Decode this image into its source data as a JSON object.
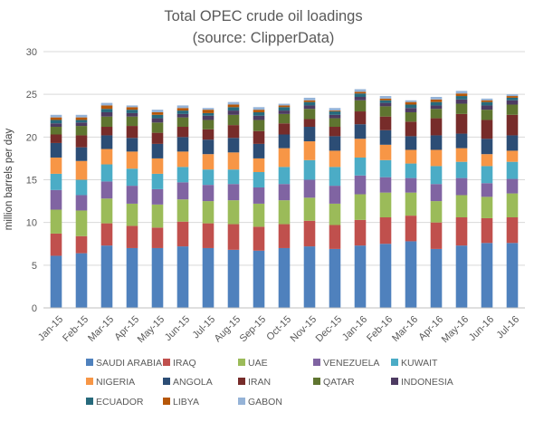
{
  "chart_data": {
    "type": "bar",
    "stacked": true,
    "title": "Total OPEC crude oil loadings",
    "subtitle": "(source: ClipperData)",
    "xlabel": "",
    "ylabel": "million barrels per day",
    "ylim": [
      0,
      30
    ],
    "yticks": [
      0,
      5,
      10,
      15,
      20,
      25,
      30
    ],
    "grid": true,
    "legend_position": "bottom",
    "categories": [
      "Jan-15",
      "Feb-15",
      "Mar-15",
      "Apr-15",
      "May-15",
      "Jun-15",
      "Jul-15",
      "Aug-15",
      "Sep-15",
      "Oct-15",
      "Nov-15",
      "Dec-15",
      "Jan-16",
      "Feb-16",
      "Mar-16",
      "Apr-16",
      "May-16",
      "Jun-16",
      "Jul-16"
    ],
    "series": [
      {
        "name": "SAUDI ARABIA",
        "color": "#4f81bd",
        "values": [
          6.1,
          6.4,
          7.3,
          7.0,
          7.0,
          7.2,
          7.0,
          6.8,
          6.7,
          7.0,
          7.2,
          6.9,
          7.3,
          7.5,
          7.8,
          6.9,
          7.3,
          7.6,
          7.6
        ]
      },
      {
        "name": "IRAQ",
        "color": "#c0504d",
        "values": [
          2.6,
          2.0,
          2.6,
          2.6,
          2.4,
          2.9,
          2.9,
          3.0,
          2.8,
          2.8,
          3.0,
          2.8,
          3.0,
          3.1,
          3.0,
          3.1,
          3.3,
          2.9,
          3.0
        ]
      },
      {
        "name": "UAE",
        "color": "#9bbb59",
        "values": [
          2.8,
          3.0,
          2.9,
          2.6,
          2.7,
          2.6,
          2.6,
          2.8,
          2.7,
          2.8,
          2.7,
          2.5,
          3.0,
          2.9,
          2.7,
          2.5,
          2.6,
          2.5,
          2.8
        ]
      },
      {
        "name": "VENEZUELA",
        "color": "#8064a2",
        "values": [
          2.3,
          1.8,
          2.0,
          2.1,
          1.8,
          2.0,
          1.9,
          1.9,
          1.9,
          1.9,
          2.1,
          2.1,
          2.2,
          1.8,
          1.7,
          2.0,
          2.0,
          1.6,
          1.7
        ]
      },
      {
        "name": "KUWAIT",
        "color": "#4bacc6",
        "values": [
          1.9,
          1.8,
          2.0,
          2.0,
          1.8,
          1.8,
          1.8,
          1.7,
          1.8,
          2.0,
          2.3,
          2.2,
          2.1,
          2.0,
          1.7,
          2.1,
          1.9,
          2.0,
          2.0
        ]
      },
      {
        "name": "NIGERIA",
        "color": "#f79646",
        "values": [
          1.9,
          2.2,
          1.8,
          2.0,
          1.8,
          1.8,
          1.8,
          2.0,
          1.6,
          2.2,
          2.2,
          1.9,
          2.2,
          1.8,
          1.6,
          1.9,
          1.6,
          1.4,
          1.3
        ]
      },
      {
        "name": "ANGOLA",
        "color": "#2c4d75",
        "values": [
          1.7,
          1.6,
          1.6,
          1.6,
          1.7,
          1.7,
          1.7,
          1.7,
          1.7,
          1.6,
          1.7,
          1.7,
          1.7,
          1.7,
          1.6,
          1.7,
          1.7,
          1.8,
          1.8
        ]
      },
      {
        "name": "IRAN",
        "color": "#772c2a",
        "values": [
          1.0,
          1.4,
          1.0,
          1.4,
          1.3,
          1.2,
          1.2,
          1.5,
          1.5,
          1.3,
          0.9,
          1.1,
          1.5,
          1.6,
          1.7,
          2.0,
          2.3,
          2.2,
          2.4
        ]
      },
      {
        "name": "QATAR",
        "color": "#5f7530",
        "values": [
          0.9,
          1.1,
          1.2,
          1.1,
          1.2,
          1.1,
          1.1,
          1.2,
          1.3,
          1.1,
          1.2,
          1.0,
          1.3,
          1.2,
          1.1,
          1.1,
          1.2,
          1.2,
          1.2
        ]
      },
      {
        "name": "INDONESIA",
        "color": "#4d3b62",
        "values": [
          0.4,
          0.4,
          0.5,
          0.4,
          0.5,
          0.4,
          0.5,
          0.5,
          0.5,
          0.4,
          0.4,
          0.4,
          0.4,
          0.4,
          0.5,
          0.4,
          0.5,
          0.5,
          0.5
        ]
      },
      {
        "name": "ECUADOR",
        "color": "#276a7c",
        "values": [
          0.4,
          0.3,
          0.4,
          0.4,
          0.4,
          0.4,
          0.3,
          0.4,
          0.4,
          0.4,
          0.4,
          0.4,
          0.4,
          0.3,
          0.4,
          0.4,
          0.4,
          0.4,
          0.3
        ]
      },
      {
        "name": "LIBYA",
        "color": "#b65708",
        "values": [
          0.3,
          0.3,
          0.4,
          0.3,
          0.3,
          0.3,
          0.4,
          0.3,
          0.3,
          0.2,
          0.2,
          0.1,
          0.2,
          0.2,
          0.3,
          0.3,
          0.3,
          0.2,
          0.2
        ]
      },
      {
        "name": "GABON",
        "color": "#95b3d7",
        "values": [
          0.3,
          0.3,
          0.3,
          0.2,
          0.3,
          0.3,
          0.2,
          0.3,
          0.3,
          0.2,
          0.3,
          0.3,
          0.3,
          0.3,
          0.2,
          0.3,
          0.3,
          0.2,
          0.2
        ]
      }
    ]
  }
}
